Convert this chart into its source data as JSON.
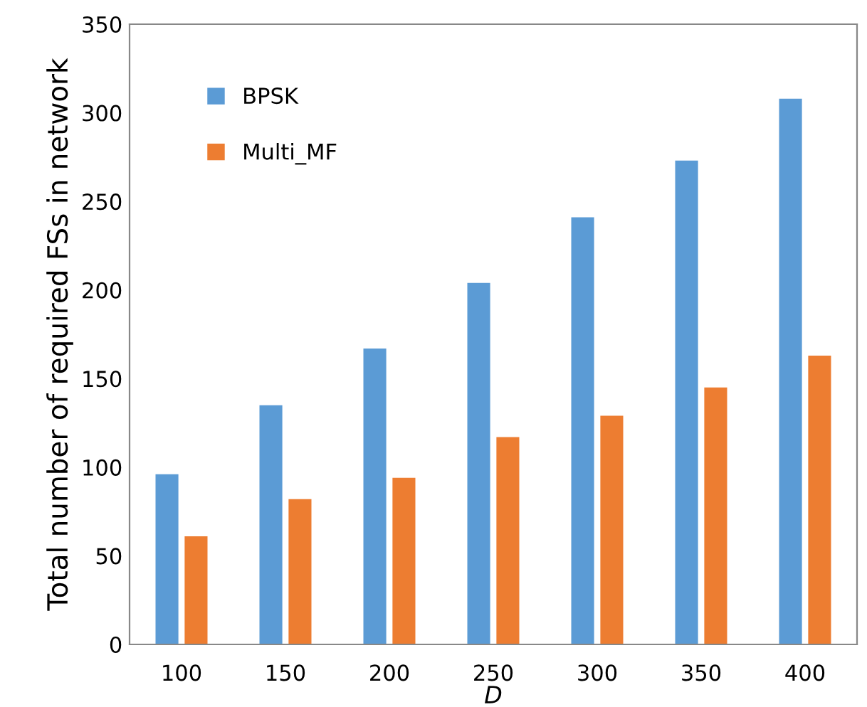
{
  "chart_data": {
    "type": "bar",
    "xlabel": "D",
    "ylabel": "Total number of required FSs in network",
    "categories": [
      "100",
      "150",
      "200",
      "250",
      "300",
      "350",
      "400"
    ],
    "series": [
      {
        "name": "BPSK",
        "color": "#5b9bd5",
        "values": [
          96,
          135,
          167,
          204,
          241,
          273,
          308
        ]
      },
      {
        "name": "Multi_MF",
        "color": "#ed7d31",
        "values": [
          61,
          82,
          94,
          117,
          129,
          145,
          163
        ]
      }
    ],
    "ylim": [
      0,
      350
    ],
    "yticks": [
      0,
      50,
      100,
      150,
      200,
      250,
      300,
      350
    ],
    "grid": false,
    "legend": "top left"
  }
}
